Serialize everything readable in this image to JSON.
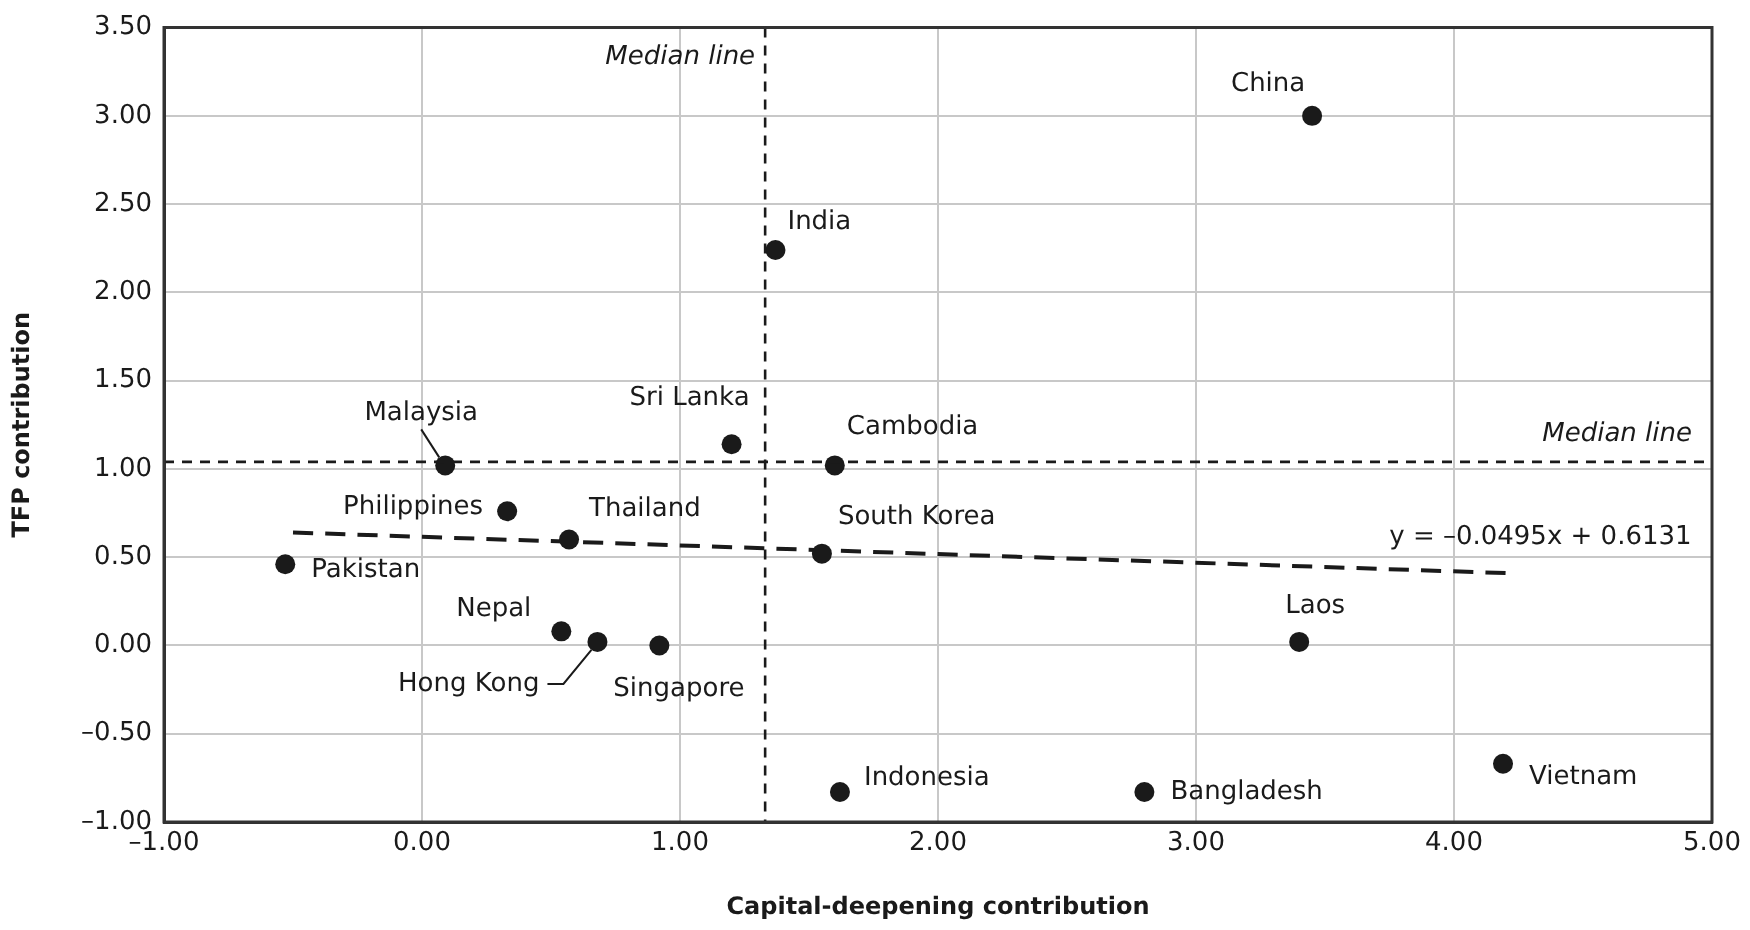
{
  "chart_data": {
    "type": "scatter",
    "xlabel": "Capital-deepening contribution",
    "ylabel": "TFP contribution",
    "xlim": [
      -1,
      5
    ],
    "ylim": [
      -1,
      3.5
    ],
    "xticks": [
      {
        "value": -1,
        "label": "–1.00"
      },
      {
        "value": 0,
        "label": "0.00"
      },
      {
        "value": 1,
        "label": "1.00"
      },
      {
        "value": 2,
        "label": "2.00"
      },
      {
        "value": 3,
        "label": "3.00"
      },
      {
        "value": 4,
        "label": "4.00"
      },
      {
        "value": 5,
        "label": "5.00"
      }
    ],
    "yticks": [
      {
        "value": -1,
        "label": "–1.00"
      },
      {
        "value": -0.5,
        "label": "–0.50"
      },
      {
        "value": 0,
        "label": "0.00"
      },
      {
        "value": 0.5,
        "label": "0.50"
      },
      {
        "value": 1,
        "label": "1.00"
      },
      {
        "value": 1.5,
        "label": "1.50"
      },
      {
        "value": 2,
        "label": "2.00"
      },
      {
        "value": 2.5,
        "label": "2.50"
      },
      {
        "value": 3,
        "label": "3.00"
      },
      {
        "value": 3.5,
        "label": "3.50"
      }
    ],
    "grid": true,
    "marker": "circle",
    "series": [
      {
        "color": "#1a1a1a",
        "x": [
          3.45,
          1.37,
          1.2,
          0.09,
          1.6,
          0.33,
          0.57,
          1.55,
          -0.53,
          0.54,
          0.68,
          0.92,
          1.62,
          2.8,
          3.4,
          4.19
        ],
        "values": [
          3.0,
          2.24,
          1.14,
          1.02,
          1.02,
          0.76,
          0.6,
          0.52,
          0.46,
          0.08,
          0.02,
          0.0,
          -0.83,
          -0.83,
          0.02,
          -0.67
        ]
      },
      {
        "type": "line",
        "name": "y = –0.0495x + 0.6131",
        "color": "#1a1a1a",
        "line_style": "dashed",
        "marker": "none",
        "x": [
          -0.5,
          4.2
        ],
        "values": [
          0.64,
          0.41
        ]
      }
    ],
    "ref_lines": [
      {
        "axis": "x",
        "value": 1.33,
        "label": "Median line",
        "color": "#1a1a1a",
        "line_style": "dashed"
      },
      {
        "axis": "y",
        "value": 1.04,
        "label": "Median line",
        "color": "#1a1a1a",
        "line_style": "dashed"
      }
    ],
    "annotations": [
      {
        "text": "China",
        "x": 3.45,
        "y": 3.0
      },
      {
        "text": "India",
        "x": 1.37,
        "y": 2.24
      },
      {
        "text": "Sri Lanka",
        "x": 1.2,
        "y": 1.14
      },
      {
        "text": "Malaysia",
        "x": 0.09,
        "y": 1.02
      },
      {
        "text": "Cambodia",
        "x": 1.6,
        "y": 1.02
      },
      {
        "text": "Philippines",
        "x": 0.33,
        "y": 0.76
      },
      {
        "text": "Thailand",
        "x": 0.57,
        "y": 0.6
      },
      {
        "text": "South Korea",
        "x": 1.55,
        "y": 0.52
      },
      {
        "text": "Pakistan",
        "x": -0.53,
        "y": 0.46
      },
      {
        "text": "Nepal",
        "x": 0.54,
        "y": 0.08
      },
      {
        "text": "Hong Kong",
        "x": 0.68,
        "y": 0.02
      },
      {
        "text": "Singapore",
        "x": 0.92,
        "y": 0.0
      },
      {
        "text": "Indonesia",
        "x": 1.62,
        "y": -0.83
      },
      {
        "text": "Bangladesh",
        "x": 2.8,
        "y": -0.83
      },
      {
        "text": "Laos",
        "x": 3.4,
        "y": 0.02
      },
      {
        "text": "Vietnam",
        "x": 4.19,
        "y": -0.67
      }
    ]
  }
}
